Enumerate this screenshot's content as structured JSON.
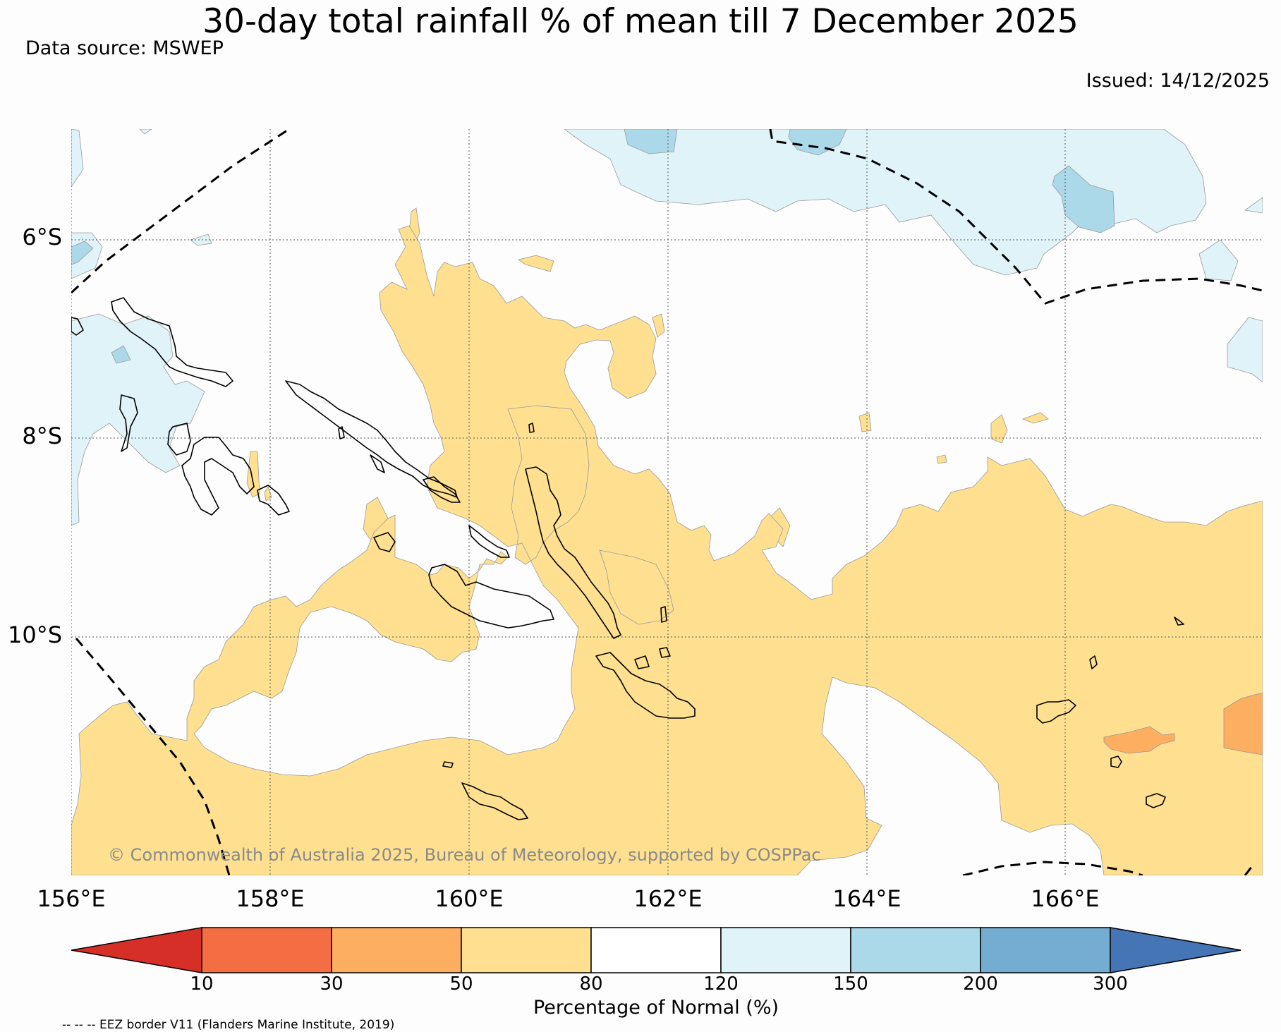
{
  "title": "30-day total rainfall % of mean till 7 December 2025",
  "data_source": "Data source: MSWEP",
  "issued": "Issued: 14/12/2025",
  "copyright": "© Commonwealth of Australia 2025, Bureau of Meteorology, supported by COSPPac",
  "latitudes": [
    "6°S",
    "8°S",
    "10°S"
  ],
  "longitudes": [
    "156°E",
    "158°E",
    "160°E",
    "162°E",
    "164°E",
    "166°E"
  ],
  "colorbar": {
    "unit_label": "Percentage of Normal (%)",
    "ticks": [
      "10",
      "30",
      "50",
      "80",
      "120",
      "150",
      "200",
      "300"
    ],
    "colors": [
      "#d62f27",
      "#f46d43",
      "#fdae61",
      "#fee090",
      "#ffffff",
      "#e0f3f8",
      "#abd9e9",
      "#74add1",
      "#4575b4"
    ]
  },
  "eez_note": "-- -- -- EEZ border V11 (Flanders Marine Institute, 2019)"
}
